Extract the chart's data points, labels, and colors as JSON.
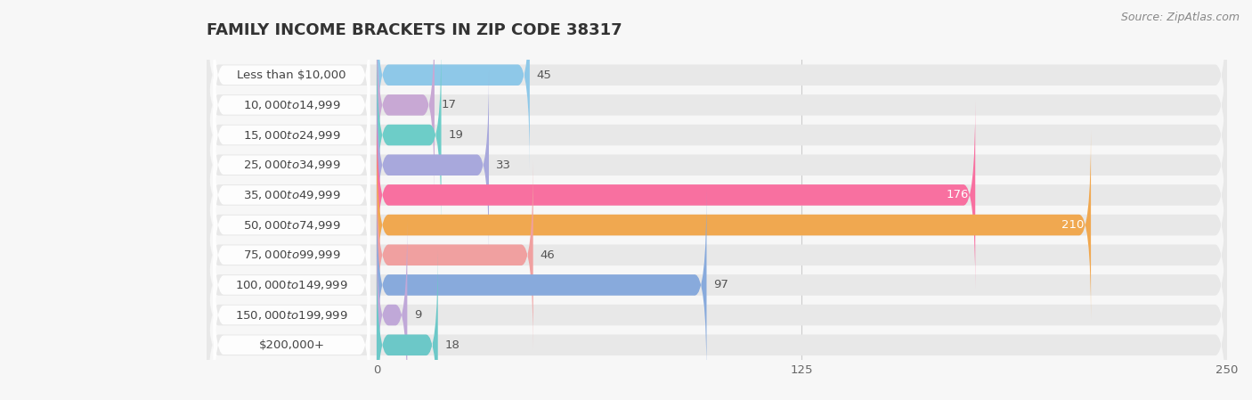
{
  "title": "FAMILY INCOME BRACKETS IN ZIP CODE 38317",
  "source": "Source: ZipAtlas.com",
  "categories": [
    "Less than $10,000",
    "$10,000 to $14,999",
    "$15,000 to $24,999",
    "$25,000 to $34,999",
    "$35,000 to $49,999",
    "$50,000 to $74,999",
    "$75,000 to $99,999",
    "$100,000 to $149,999",
    "$150,000 to $199,999",
    "$200,000+"
  ],
  "values": [
    45,
    17,
    19,
    33,
    176,
    210,
    46,
    97,
    9,
    18
  ],
  "bar_colors": [
    "#8ec8e8",
    "#c8a8d4",
    "#6dcdc8",
    "#a8a8dc",
    "#f870a0",
    "#f0a850",
    "#f0a0a0",
    "#88aadc",
    "#c0a8d8",
    "#6cc8c8"
  ],
  "label_colors_inside": [
    false,
    false,
    false,
    false,
    true,
    true,
    false,
    false,
    false,
    false
  ],
  "xlim_data": [
    0,
    250
  ],
  "xticks": [
    0,
    125,
    250
  ],
  "background_color": "#f7f7f7",
  "row_bg_color": "#e8e8e8",
  "label_pill_color": "#ffffff",
  "title_fontsize": 13,
  "label_fontsize": 9.5,
  "value_fontsize": 9.5,
  "source_fontsize": 9
}
